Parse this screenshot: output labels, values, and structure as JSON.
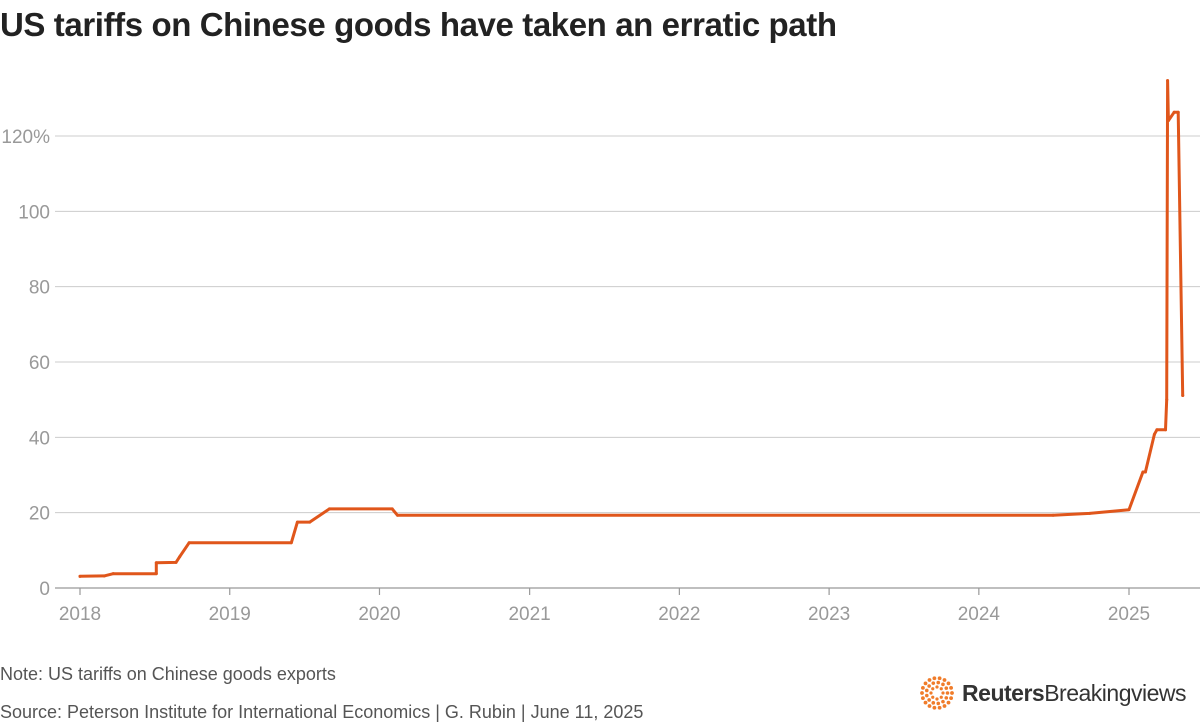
{
  "title": "US tariffs on Chinese goods have taken an erratic path",
  "note": "Note: US tariffs on Chinese goods exports",
  "source": "Source: Peterson Institute for International Economics | G. Rubin | June 11, 2025",
  "brand": {
    "name_bold": "Reuters",
    "name_regular": "Breakingviews",
    "logo_icon": "reuters-dot-ring-icon"
  },
  "colors": {
    "line": "#e0561b",
    "grid": "#cccccc",
    "axis_text": "#999999",
    "logo": "#f07c2a"
  },
  "chart_data": {
    "type": "line",
    "title": "US tariffs on Chinese goods have taken an erratic path",
    "xlabel": "",
    "ylabel": "",
    "x_ticks": [
      "2018",
      "2019",
      "2020",
      "2021",
      "2022",
      "2023",
      "2024",
      "2025"
    ],
    "y_ticks": [
      "0",
      "20",
      "40",
      "60",
      "80",
      "100",
      "120%"
    ],
    "y_tick_values": [
      0,
      20,
      40,
      60,
      80,
      100,
      120
    ],
    "xlim": [
      "2018-01-01",
      "2025-06-11"
    ],
    "ylim": [
      0,
      135
    ],
    "grid": true,
    "legend": "none",
    "series": [
      {
        "points": [
          {
            "x": "2018-01-01",
            "y": 3.1
          },
          {
            "x": "2018-03-01",
            "y": 3.2
          },
          {
            "x": "2018-03-23",
            "y": 3.8
          },
          {
            "x": "2018-07-06",
            "y": 3.8
          },
          {
            "x": "2018-07-06",
            "y": 6.7
          },
          {
            "x": "2018-08-23",
            "y": 6.8
          },
          {
            "x": "2018-09-01",
            "y": 8.3
          },
          {
            "x": "2018-09-24",
            "y": 12.0
          },
          {
            "x": "2019-05-31",
            "y": 12.0
          },
          {
            "x": "2019-06-15",
            "y": 17.5
          },
          {
            "x": "2019-07-15",
            "y": 17.5
          },
          {
            "x": "2019-09-01",
            "y": 21.0
          },
          {
            "x": "2020-02-01",
            "y": 21.0
          },
          {
            "x": "2020-02-14",
            "y": 19.3
          },
          {
            "x": "2024-06-30",
            "y": 19.3
          },
          {
            "x": "2024-09-27",
            "y": 19.8
          },
          {
            "x": "2025-01-01",
            "y": 20.8
          },
          {
            "x": "2025-02-04",
            "y": 30.8
          },
          {
            "x": "2025-02-10",
            "y": 30.8
          },
          {
            "x": "2025-03-04",
            "y": 40.8
          },
          {
            "x": "2025-03-10",
            "y": 42.0
          },
          {
            "x": "2025-03-31",
            "y": 42.0
          },
          {
            "x": "2025-04-03",
            "y": 50.0
          },
          {
            "x": "2025-04-05",
            "y": 134.7
          },
          {
            "x": "2025-04-07",
            "y": 124.1
          },
          {
            "x": "2025-04-21",
            "y": 126.3
          },
          {
            "x": "2025-05-01",
            "y": 126.3
          },
          {
            "x": "2025-05-12",
            "y": 51.1
          }
        ]
      }
    ]
  }
}
